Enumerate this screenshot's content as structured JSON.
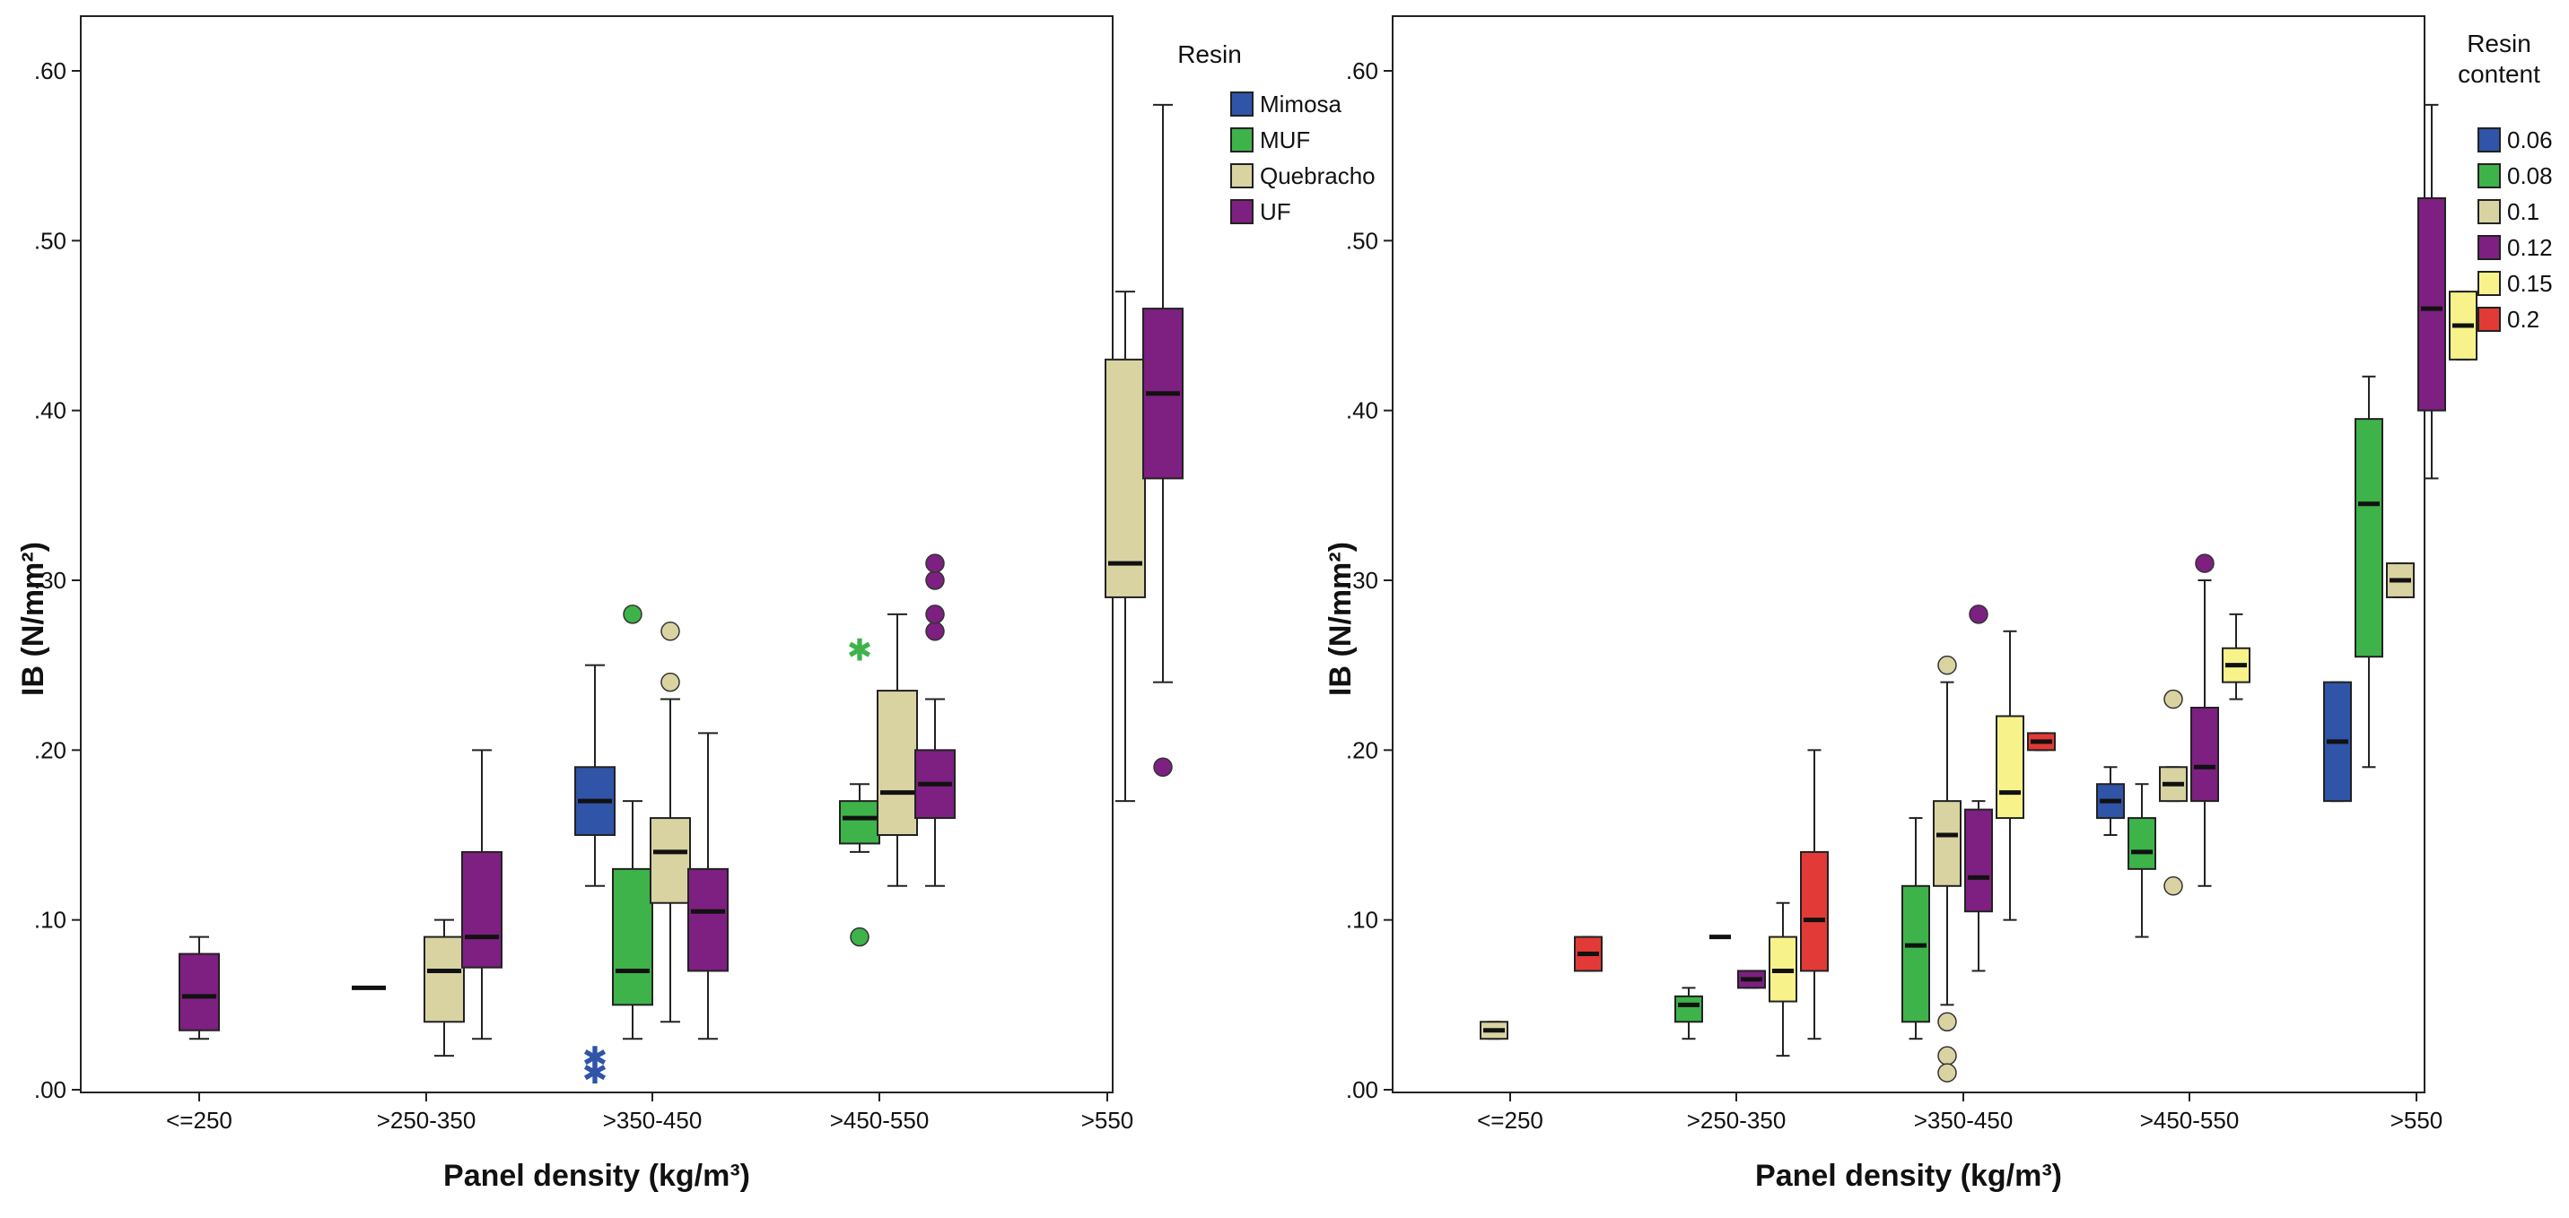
{
  "colors": {
    "Mimosa": "#2f54a8",
    "MUF": "#3db34a",
    "Quebracho": "#d9d3a2",
    "UF": "#7d2081",
    "0.06": "#2f54a8",
    "0.08": "#3db34a",
    "0.1": "#d9d3a2",
    "0.12": "#7d2081",
    "0.15": "#f7f38a",
    "0.2": "#e23a36"
  },
  "chart_data": [
    {
      "type": "boxplot",
      "ylabel": "IB (N/mm²)",
      "xlabel": "Panel density (kg/m³)",
      "ylim": [
        0,
        0.66
      ],
      "yticks": [
        0,
        0.1,
        0.2,
        0.3,
        0.4,
        0.5,
        0.6
      ],
      "ytick_labels": [
        ".00",
        ".10",
        ".20",
        ".30",
        ".40",
        ".50",
        ".60"
      ],
      "categories": [
        "<=250",
        ">250-350",
        ">350-450",
        ">450-550",
        ">550"
      ],
      "legend": {
        "title": "Resin",
        "position": "top-right",
        "entries": [
          "Mimosa",
          "MUF",
          "Quebracho",
          "UF"
        ]
      },
      "boxes": [
        {
          "category": 0,
          "group": "UF",
          "min": 0.03,
          "q1": 0.035,
          "median": 0.055,
          "q3": 0.08,
          "max": 0.09
        },
        {
          "category": 1,
          "group": "Mimosa",
          "min": 0.06,
          "q1": 0.06,
          "median": 0.06,
          "q3": 0.06,
          "max": 0.06
        },
        {
          "category": 1,
          "group": "Quebracho",
          "min": 0.02,
          "q1": 0.04,
          "median": 0.07,
          "q3": 0.09,
          "max": 0.1
        },
        {
          "category": 1,
          "group": "UF",
          "min": 0.03,
          "q1": 0.072,
          "median": 0.09,
          "q3": 0.14,
          "max": 0.2,
          "outliers": []
        },
        {
          "category": 2,
          "group": "Mimosa",
          "min": 0.12,
          "q1": 0.15,
          "median": 0.17,
          "q3": 0.19,
          "max": 0.25,
          "extremes": [
            0.02,
            0.011
          ]
        },
        {
          "category": 2,
          "group": "MUF",
          "min": 0.03,
          "q1": 0.05,
          "median": 0.07,
          "q3": 0.13,
          "max": 0.17,
          "outliers": [
            0.28
          ]
        },
        {
          "category": 2,
          "group": "Quebracho",
          "min": 0.04,
          "q1": 0.11,
          "median": 0.14,
          "q3": 0.16,
          "max": 0.23,
          "outliers": [
            0.24,
            0.27
          ]
        },
        {
          "category": 2,
          "group": "UF",
          "min": 0.03,
          "q1": 0.07,
          "median": 0.105,
          "q3": 0.13,
          "max": 0.21
        },
        {
          "category": 3,
          "group": "MUF",
          "min": 0.14,
          "q1": 0.145,
          "median": 0.16,
          "q3": 0.17,
          "max": 0.18,
          "outliers": [
            0.09
          ],
          "extremes": [
            0.26
          ]
        },
        {
          "category": 3,
          "group": "Quebracho",
          "min": 0.12,
          "q1": 0.15,
          "median": 0.175,
          "q3": 0.235,
          "max": 0.28
        },
        {
          "category": 3,
          "group": "UF",
          "min": 0.12,
          "q1": 0.16,
          "median": 0.18,
          "q3": 0.2,
          "max": 0.23,
          "outliers": [
            0.27,
            0.28,
            0.3,
            0.31
          ]
        },
        {
          "category": 4,
          "group": "Quebracho",
          "min": 0.17,
          "q1": 0.29,
          "median": 0.31,
          "q3": 0.43,
          "max": 0.47
        },
        {
          "category": 4,
          "group": "UF",
          "min": 0.24,
          "q1": 0.36,
          "median": 0.41,
          "q3": 0.46,
          "max": 0.58,
          "outliers": [
            0.19
          ]
        }
      ]
    },
    {
      "type": "boxplot",
      "ylabel": "IB (N/mm²)",
      "xlabel": "Panel density (kg/m³)",
      "ylim": [
        0,
        0.66
      ],
      "yticks": [
        0,
        0.1,
        0.2,
        0.3,
        0.4,
        0.5,
        0.6
      ],
      "ytick_labels": [
        ".00",
        ".10",
        ".20",
        ".30",
        ".40",
        ".50",
        ".60"
      ],
      "categories": [
        "<=250",
        ">250-350",
        ">350-450",
        ">450-550",
        ">550"
      ],
      "legend": {
        "title": [
          "Resin",
          "content"
        ],
        "position": "top-right",
        "entries": [
          "0.06",
          "0.08",
          "0.1",
          "0.12",
          "0.15",
          "0.2"
        ]
      },
      "boxes": [
        {
          "category": 0,
          "group": "0.1",
          "min": 0.03,
          "q1": 0.03,
          "median": 0.035,
          "q3": 0.04,
          "max": 0.04
        },
        {
          "category": 0,
          "group": "0.2",
          "min": 0.07,
          "q1": 0.07,
          "median": 0.08,
          "q3": 0.09,
          "max": 0.09
        },
        {
          "category": 1,
          "group": "0.08",
          "min": 0.03,
          "q1": 0.04,
          "median": 0.05,
          "q3": 0.055,
          "max": 0.06
        },
        {
          "category": 1,
          "group": "0.1",
          "min": 0.09,
          "q1": 0.09,
          "median": 0.09,
          "q3": 0.09,
          "max": 0.09
        },
        {
          "category": 1,
          "group": "0.12",
          "min": 0.06,
          "q1": 0.06,
          "median": 0.065,
          "q3": 0.07,
          "max": 0.07
        },
        {
          "category": 1,
          "group": "0.15",
          "min": 0.02,
          "q1": 0.052,
          "median": 0.07,
          "q3": 0.09,
          "max": 0.11
        },
        {
          "category": 1,
          "group": "0.2",
          "min": 0.03,
          "q1": 0.07,
          "median": 0.1,
          "q3": 0.14,
          "max": 0.2
        },
        {
          "category": 2,
          "group": "0.08",
          "min": 0.03,
          "q1": 0.04,
          "median": 0.085,
          "q3": 0.12,
          "max": 0.16
        },
        {
          "category": 2,
          "group": "0.1",
          "min": 0.05,
          "q1": 0.12,
          "median": 0.15,
          "q3": 0.17,
          "max": 0.24,
          "outliers": [
            0.25,
            0.04,
            0.02,
            0.01
          ]
        },
        {
          "category": 2,
          "group": "0.12",
          "min": 0.07,
          "q1": 0.105,
          "median": 0.125,
          "q3": 0.165,
          "max": 0.17,
          "outliers": [
            0.28
          ]
        },
        {
          "category": 2,
          "group": "0.15",
          "min": 0.1,
          "q1": 0.16,
          "median": 0.175,
          "q3": 0.22,
          "max": 0.27
        },
        {
          "category": 2,
          "group": "0.2",
          "min": 0.2,
          "q1": 0.2,
          "median": 0.205,
          "q3": 0.21,
          "max": 0.21
        },
        {
          "category": 3,
          "group": "0.06",
          "min": 0.15,
          "q1": 0.16,
          "median": 0.17,
          "q3": 0.18,
          "max": 0.19
        },
        {
          "category": 3,
          "group": "0.08",
          "min": 0.09,
          "q1": 0.13,
          "median": 0.14,
          "q3": 0.16,
          "max": 0.18
        },
        {
          "category": 3,
          "group": "0.1",
          "min": 0.17,
          "q1": 0.17,
          "median": 0.18,
          "q3": 0.19,
          "max": 0.19,
          "outliers": [
            0.23,
            0.12
          ]
        },
        {
          "category": 3,
          "group": "0.12",
          "min": 0.12,
          "q1": 0.17,
          "median": 0.19,
          "q3": 0.225,
          "max": 0.3,
          "outliers": [
            0.31
          ]
        },
        {
          "category": 3,
          "group": "0.15",
          "min": 0.23,
          "q1": 0.24,
          "median": 0.25,
          "q3": 0.26,
          "max": 0.28
        },
        {
          "category": 4,
          "group": "0.06",
          "min": 0.17,
          "q1": 0.17,
          "median": 0.205,
          "q3": 0.24,
          "max": 0.24
        },
        {
          "category": 4,
          "group": "0.08",
          "min": 0.19,
          "q1": 0.255,
          "median": 0.345,
          "q3": 0.395,
          "max": 0.42
        },
        {
          "category": 4,
          "group": "0.1",
          "min": 0.29,
          "q1": 0.29,
          "median": 0.3,
          "q3": 0.31,
          "max": 0.31
        },
        {
          "category": 4,
          "group": "0.12",
          "min": 0.36,
          "q1": 0.4,
          "median": 0.46,
          "q3": 0.525,
          "max": 0.58
        },
        {
          "category": 4,
          "group": "0.15",
          "min": 0.43,
          "q1": 0.43,
          "median": 0.45,
          "q3": 0.47,
          "max": 0.47
        }
      ]
    }
  ]
}
